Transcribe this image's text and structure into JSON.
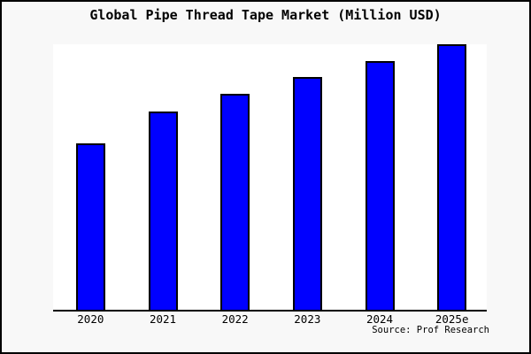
{
  "chart_data": {
    "type": "bar",
    "title": "Global Pipe Thread Tape Market (Million USD)",
    "categories": [
      "2020",
      "2021",
      "2022",
      "2023",
      "2024",
      "2025e"
    ],
    "values": [
      62.7,
      74.7,
      81.3,
      87.7,
      93.7,
      100
    ],
    "units": "relative bar height, % of tallest bar (no y-axis scale shown in figure)",
    "ylim": [
      0,
      100
    ],
    "xlabel": "",
    "ylabel": "",
    "grid": false,
    "legend": false,
    "y_axis_shown": false,
    "colors": {
      "bar_fill": "#0000ff",
      "bar_edge": "#000000",
      "plot_background": "#ffffff",
      "figure_background": "#f8f8f8",
      "axis_line": "#000000",
      "text": "#000000",
      "frame_border": "#000000"
    }
  },
  "source": {
    "label": "Source: Prof Research"
  }
}
